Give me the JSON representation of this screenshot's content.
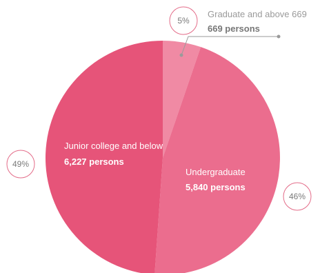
{
  "chart_data": {
    "type": "pie",
    "title": "",
    "slices": [
      {
        "name": "Graduate and above",
        "name_label": "Graduate and above 669",
        "value": 669,
        "value_label": "669 persons",
        "percent_label": "5%",
        "color": "#f08aa4"
      },
      {
        "name": "Undergraduate",
        "name_label": "Undergraduate",
        "value": 5840,
        "value_label": "5,840 persons",
        "percent_label": "46%",
        "color": "#eb6d8e"
      },
      {
        "name": "Junior college and below",
        "name_label": "Junior college and below",
        "value": 6227,
        "value_label": "6,227 persons",
        "percent_label": "49%",
        "color": "#e65479"
      }
    ],
    "legend": "none",
    "badge_border_color": "#e36b88",
    "leader_color": "#9a9a9a"
  }
}
